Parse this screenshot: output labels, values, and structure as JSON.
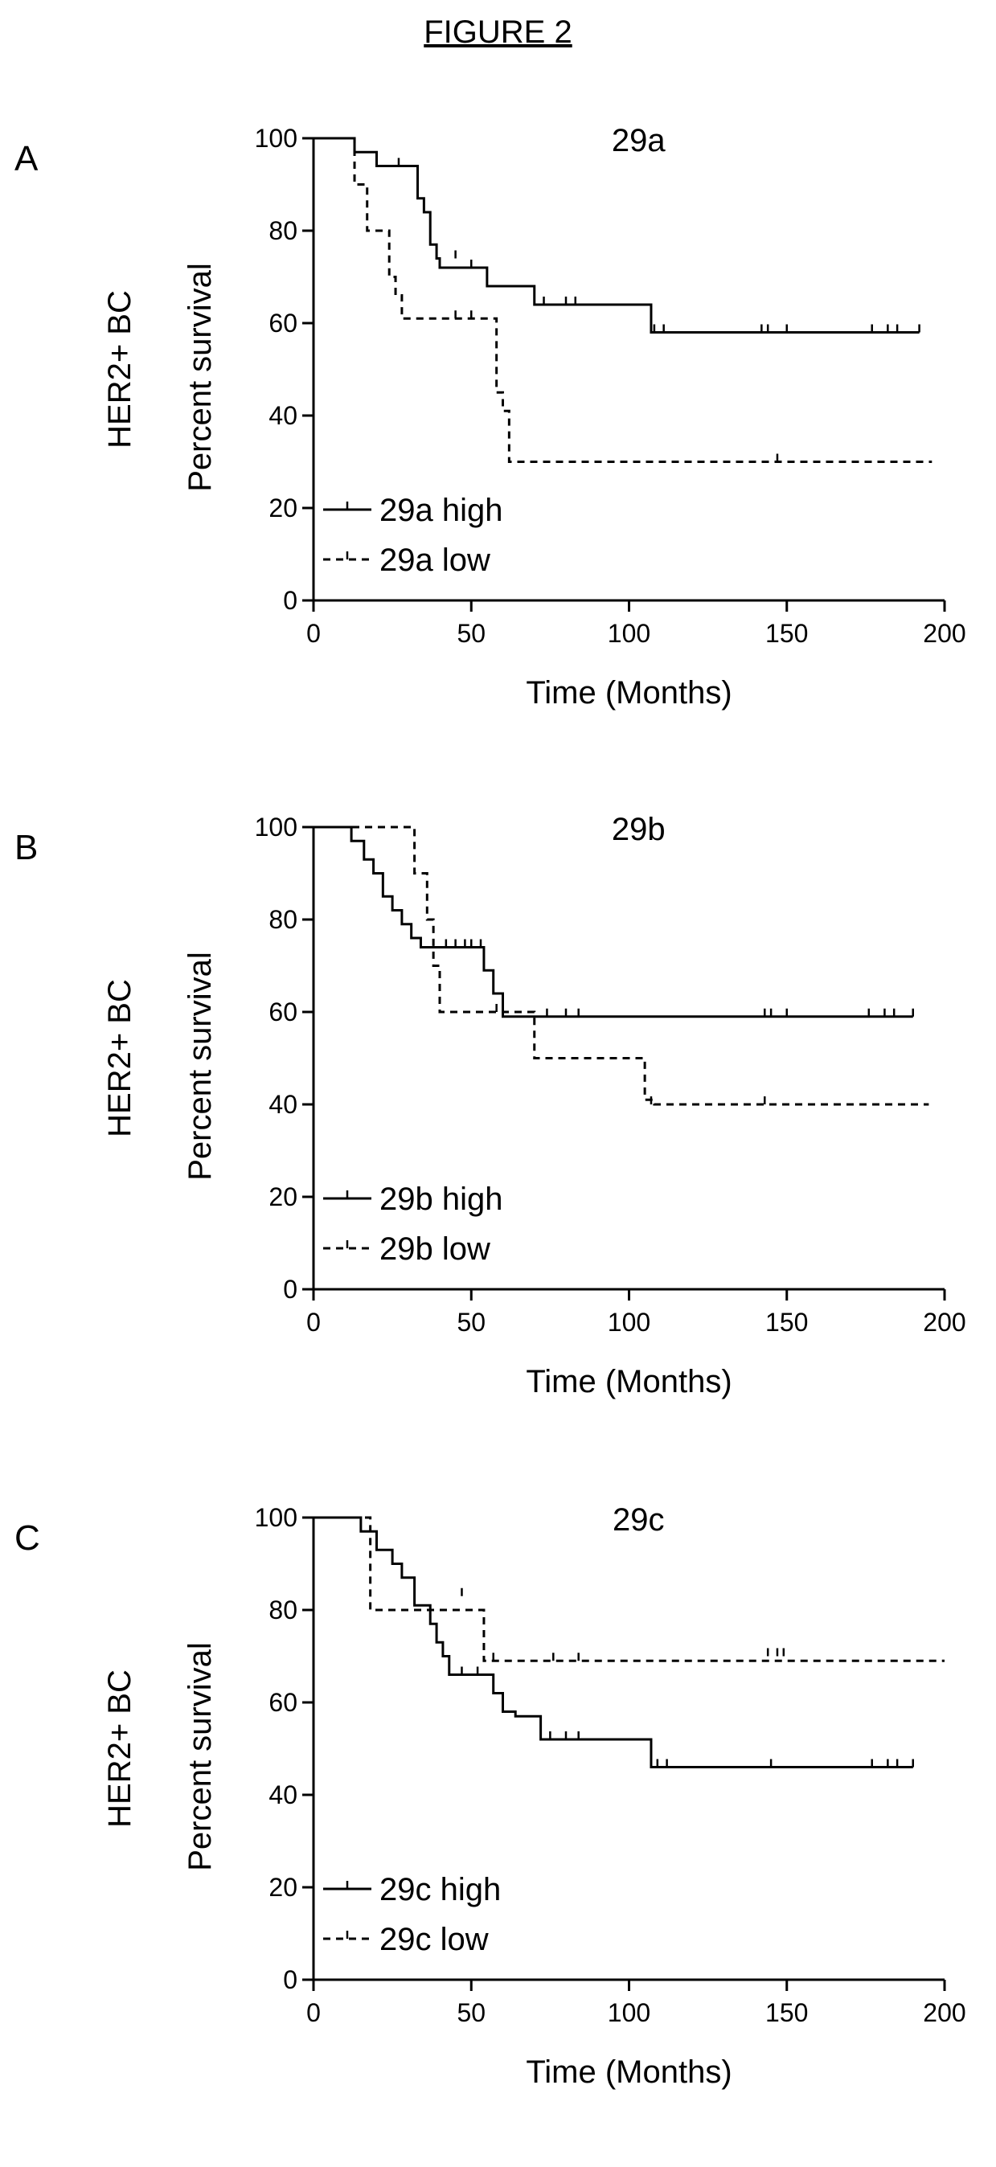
{
  "figure_title": "FIGURE 2",
  "chart_data": [
    {
      "type": "line",
      "panel": "A",
      "title": "29a",
      "row_label": "HER2+ BC",
      "xlabel": "Time (Months)",
      "ylabel": "Percent survival",
      "xlim": [
        0,
        200
      ],
      "ylim": [
        0,
        100
      ],
      "xticks": [
        0,
        50,
        100,
        150,
        200
      ],
      "yticks": [
        0,
        20,
        40,
        60,
        80,
        100
      ],
      "legend": "bottom-left",
      "series": [
        {
          "name": "29a high",
          "style": "solid",
          "x": [
            0,
            13,
            20,
            25,
            33,
            35,
            37,
            39,
            40,
            55,
            70,
            107,
            192
          ],
          "y": [
            100,
            97,
            94,
            94,
            87,
            84,
            77,
            74,
            72,
            68,
            64,
            58,
            58
          ],
          "censored": [
            [
              27,
              94
            ],
            [
              45,
              74
            ],
            [
              50,
              72
            ],
            [
              73,
              64
            ],
            [
              80,
              64
            ],
            [
              83,
              64
            ],
            [
              108,
              58
            ],
            [
              111,
              58
            ],
            [
              142,
              58
            ],
            [
              144,
              58
            ],
            [
              150,
              58
            ],
            [
              177,
              58
            ],
            [
              182,
              58
            ],
            [
              185,
              58
            ],
            [
              192,
              58
            ]
          ]
        },
        {
          "name": "29a low",
          "style": "dashed",
          "x": [
            0,
            13,
            17,
            20,
            24,
            26,
            28,
            58,
            60,
            62,
            196
          ],
          "y": [
            100,
            90,
            80,
            80,
            70,
            66,
            61,
            45,
            41,
            30,
            30
          ],
          "censored": [
            [
              45,
              61
            ],
            [
              50,
              61
            ],
            [
              147,
              30
            ]
          ]
        }
      ]
    },
    {
      "type": "line",
      "panel": "B",
      "title": "29b",
      "row_label": "HER2+ BC",
      "xlabel": "Time (Months)",
      "ylabel": "Percent survival",
      "xlim": [
        0,
        200
      ],
      "ylim": [
        0,
        100
      ],
      "xticks": [
        0,
        50,
        100,
        150,
        200
      ],
      "yticks": [
        0,
        20,
        40,
        60,
        80,
        100
      ],
      "legend": "bottom-left",
      "series": [
        {
          "name": "29b high",
          "style": "solid",
          "x": [
            0,
            12,
            16,
            19,
            22,
            25,
            28,
            31,
            34,
            37,
            54,
            57,
            60,
            190
          ],
          "y": [
            100,
            97,
            93,
            90,
            85,
            82,
            79,
            76,
            74,
            74,
            69,
            64,
            59,
            59
          ],
          "censored": [
            [
              42,
              74
            ],
            [
              45,
              74
            ],
            [
              48,
              74
            ],
            [
              50,
              74
            ],
            [
              53,
              74
            ],
            [
              74,
              59
            ],
            [
              80,
              59
            ],
            [
              84,
              59
            ],
            [
              143,
              59
            ],
            [
              145,
              59
            ],
            [
              150,
              59
            ],
            [
              176,
              59
            ],
            [
              181,
              59
            ],
            [
              184,
              59
            ],
            [
              190,
              59
            ]
          ]
        },
        {
          "name": "29b low",
          "style": "dashed",
          "x": [
            0,
            32,
            36,
            38,
            40,
            70,
            105,
            108,
            195
          ],
          "y": [
            100,
            90,
            80,
            70,
            60,
            50,
            41,
            40,
            40
          ],
          "censored": [
            [
              58,
              60
            ],
            [
              107,
              40
            ],
            [
              143,
              40
            ]
          ]
        }
      ]
    },
    {
      "type": "line",
      "panel": "C",
      "title": "29c",
      "row_label": "HER2+ BC",
      "xlabel": "Time (Months)",
      "ylabel": "Percent survival",
      "xlim": [
        0,
        200
      ],
      "ylim": [
        0,
        100
      ],
      "xticks": [
        0,
        50,
        100,
        150,
        200
      ],
      "yticks": [
        0,
        20,
        40,
        60,
        80,
        100
      ],
      "legend": "bottom-left",
      "series": [
        {
          "name": "29c high",
          "style": "solid",
          "x": [
            0,
            15,
            20,
            25,
            28,
            32,
            37,
            39,
            41,
            43,
            57,
            60,
            64,
            72,
            107,
            190
          ],
          "y": [
            100,
            97,
            93,
            90,
            87,
            81,
            77,
            73,
            70,
            66,
            62,
            58,
            57,
            52,
            46,
            46
          ],
          "censored": [
            [
              47,
              66
            ],
            [
              52,
              66
            ],
            [
              75,
              52
            ],
            [
              80,
              52
            ],
            [
              84,
              52
            ],
            [
              109,
              46
            ],
            [
              112,
              46
            ],
            [
              145,
              46
            ],
            [
              177,
              46
            ],
            [
              182,
              46
            ],
            [
              185,
              46
            ],
            [
              190,
              46
            ]
          ]
        },
        {
          "name": "29c low",
          "style": "dashed",
          "x": [
            0,
            18,
            52,
            54,
            200
          ],
          "y": [
            100,
            80,
            80,
            69,
            69
          ],
          "censored": [
            [
              47,
              83
            ],
            [
              57,
              69
            ],
            [
              76,
              69
            ],
            [
              84,
              69
            ],
            [
              144,
              70
            ],
            [
              147,
              70
            ],
            [
              149,
              70
            ]
          ]
        }
      ]
    }
  ]
}
